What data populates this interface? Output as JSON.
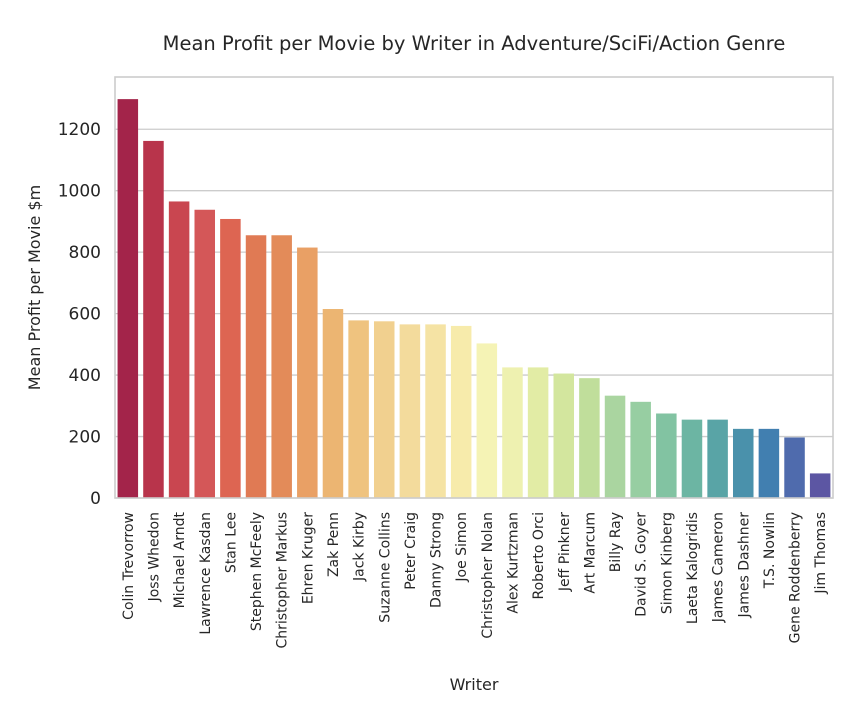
{
  "chart_data": {
    "type": "bar",
    "title": "Mean Profit per Movie by Writer in Adventure/SciFi/Action Genre",
    "xlabel": "Writer",
    "ylabel": "Mean Profit per Movie $m",
    "ylim": [
      0,
      1370
    ],
    "yticks": [
      0,
      200,
      400,
      600,
      800,
      1000,
      1200
    ],
    "grid": true,
    "legend": "none",
    "categories": [
      "Colin Trevorrow",
      "Joss Whedon",
      "Michael Arndt",
      "Lawrence Kasdan",
      "Stan Lee",
      "Stephen McFeely",
      "Christopher Markus",
      "Ehren Kruger",
      "Zak Penn",
      "Jack Kirby",
      "Suzanne Collins",
      "Peter Craig",
      "Danny Strong",
      "Joe Simon",
      "Christopher Nolan",
      "Alex Kurtzman",
      "Roberto Orci",
      "Jeff Pinkner",
      "Art Marcum",
      "Billy Ray",
      "David S. Goyer",
      "Simon Kinberg",
      "Laeta Kalogridis",
      "James Cameron",
      "James Dashner",
      "T.S. Nowlin",
      "Gene Roddenberry",
      "Jim Thomas"
    ],
    "values": [
      1298,
      1162,
      965,
      938,
      908,
      855,
      855,
      815,
      615,
      578,
      575,
      565,
      565,
      560,
      503,
      425,
      425,
      405,
      390,
      333,
      313,
      275,
      255,
      255,
      225,
      225,
      197,
      80
    ],
    "colors": [
      "#a3244a",
      "#b8344b",
      "#c94650",
      "#d45758",
      "#dd6552",
      "#e07a54",
      "#e38b59",
      "#e9a065",
      "#ecb572",
      "#efc37f",
      "#f1d08f",
      "#f3db9c",
      "#f5e3a4",
      "#f7ebab",
      "#f5f3b5",
      "#eef1b0",
      "#e2eca5",
      "#d3e69e",
      "#c0de9b",
      "#aad5a0",
      "#97cea2",
      "#82c3a2",
      "#6cb5a3",
      "#59a4a6",
      "#4a91ab",
      "#417fb0",
      "#4f6bad",
      "#5c56a3"
    ]
  }
}
